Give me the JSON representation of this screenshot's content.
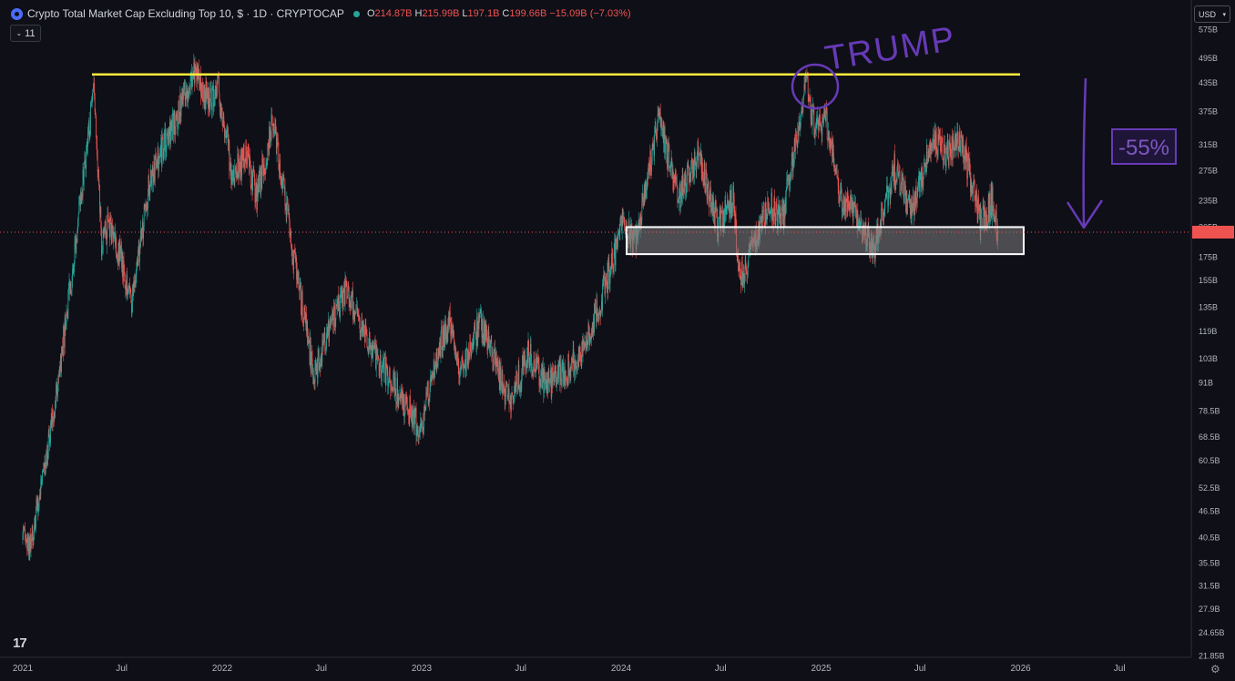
{
  "header": {
    "title": "Crypto Total Market Cap Excluding Top 10, $ · 1D · CRYPTOCAP",
    "ohlc": [
      {
        "key": "O",
        "value": "214.87B"
      },
      {
        "key": "H",
        "value": "215.99B"
      },
      {
        "key": "L",
        "value": "197.1B"
      },
      {
        "key": "C",
        "value": "199.66B"
      },
      {
        "key": "",
        "value": "−15.09B (−7.03%)"
      }
    ],
    "indicator_count": "11",
    "currency": "USD",
    "logo_text": "17"
  },
  "chart_data": {
    "type": "candlestick",
    "title": "Crypto Total Market Cap Excluding Top 10, $ · 1D · CRYPTOCAP",
    "x_ticks": [
      "2021",
      "Jul",
      "2022",
      "Jul",
      "2023",
      "Jul",
      "2024",
      "Jul",
      "2025",
      "Jul",
      "2026",
      "Jul"
    ],
    "y_ticks": [
      "575B",
      "495B",
      "435B",
      "375B",
      "315B",
      "275B",
      "235B",
      "205B",
      "175B",
      "155B",
      "135B",
      "119B",
      "103B",
      "91B",
      "78.5B",
      "68.5B",
      "60.5B",
      "52.5B",
      "46.5B",
      "40.5B",
      "35.5B",
      "31.5B",
      "27.9B",
      "24.65B",
      "21.85B"
    ],
    "y_scale": "log",
    "price_path": [
      [
        "2021-01-01",
        40
      ],
      [
        "2021-01-15",
        38
      ],
      [
        "2021-02-10",
        60
      ],
      [
        "2021-03-10",
        95
      ],
      [
        "2021-04-05",
        180
      ],
      [
        "2021-04-20",
        260
      ],
      [
        "2021-05-12",
        420
      ],
      [
        "2021-05-25",
        190
      ],
      [
        "2021-06-10",
        210
      ],
      [
        "2021-07-20",
        140
      ],
      [
        "2021-08-20",
        260
      ],
      [
        "2021-09-10",
        300
      ],
      [
        "2021-10-05",
        350
      ],
      [
        "2021-11-10",
        470
      ],
      [
        "2021-12-05",
        400
      ],
      [
        "2021-12-25",
        420
      ],
      [
        "2022-01-20",
        270
      ],
      [
        "2022-02-15",
        300
      ],
      [
        "2022-03-05",
        240
      ],
      [
        "2022-04-05",
        360
      ],
      [
        "2022-05-10",
        180
      ],
      [
        "2022-06-18",
        95
      ],
      [
        "2022-08-15",
        150
      ],
      [
        "2022-09-20",
        115
      ],
      [
        "2022-11-08",
        90
      ],
      [
        "2022-12-30",
        72
      ],
      [
        "2023-02-01",
        110
      ],
      [
        "2023-02-20",
        125
      ],
      [
        "2023-03-10",
        95
      ],
      [
        "2023-04-18",
        125
      ],
      [
        "2023-06-10",
        82
      ],
      [
        "2023-07-15",
        105
      ],
      [
        "2023-08-20",
        90
      ],
      [
        "2023-10-20",
        105
      ],
      [
        "2023-11-20",
        135
      ],
      [
        "2023-12-20",
        180
      ],
      [
        "2024-01-05",
        215
      ],
      [
        "2024-01-25",
        190
      ],
      [
        "2024-03-10",
        360
      ],
      [
        "2024-04-15",
        240
      ],
      [
        "2024-05-20",
        300
      ],
      [
        "2024-06-25",
        210
      ],
      [
        "2024-07-25",
        240
      ],
      [
        "2024-08-05",
        155
      ],
      [
        "2024-09-01",
        190
      ],
      [
        "2024-09-30",
        230
      ],
      [
        "2024-10-20",
        210
      ],
      [
        "2024-12-05",
        440
      ],
      [
        "2024-12-20",
        350
      ],
      [
        "2025-01-10",
        360
      ],
      [
        "2025-02-05",
        240
      ],
      [
        "2025-03-10",
        215
      ],
      [
        "2025-04-07",
        180
      ],
      [
        "2025-05-15",
        280
      ],
      [
        "2025-06-15",
        220
      ],
      [
        "2025-07-20",
        320
      ],
      [
        "2025-08-20",
        300
      ],
      [
        "2025-09-15",
        320
      ],
      [
        "2025-10-10",
        240
      ],
      [
        "2025-10-20",
        210
      ],
      [
        "2025-11-10",
        235
      ],
      [
        "2025-11-21",
        199.66
      ]
    ],
    "annotations": {
      "resistance_line": 455,
      "support_zone": [
        178,
        205
      ],
      "current_price": 199.66,
      "text_trump": "TRUMP",
      "text_drop": "-55%"
    }
  }
}
